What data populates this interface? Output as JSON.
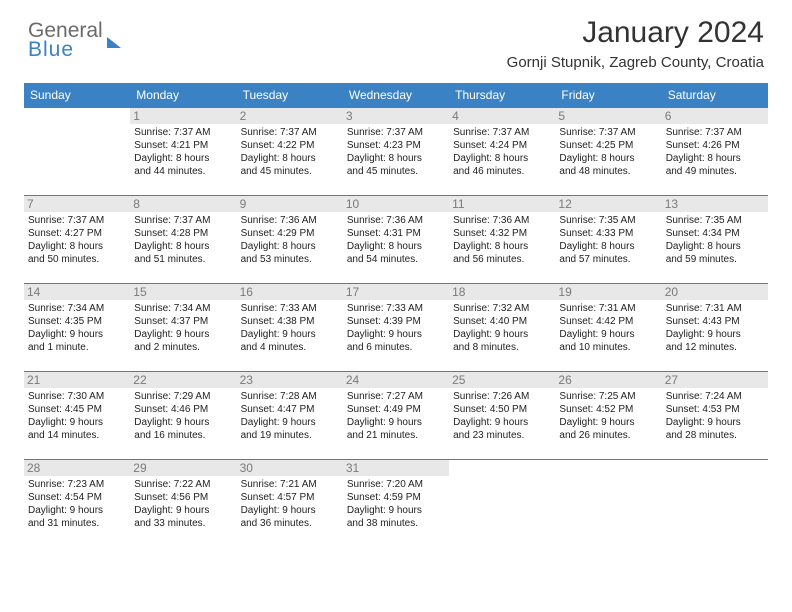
{
  "logo": {
    "line1": "General",
    "line2": "Blue"
  },
  "title": "January 2024",
  "location": "Gornji Stupnik, Zagreb County, Croatia",
  "colors": {
    "header_bg": "#3b82c4",
    "header_text": "#ffffff",
    "daynum_bg": "#e8e8e8",
    "daynum_text": "#7a7a7a",
    "cell_border": "#3b82c4",
    "body_text": "#222222",
    "logo_gray": "#6b6b6b",
    "logo_blue": "#3b82c4"
  },
  "weekdays": [
    "Sunday",
    "Monday",
    "Tuesday",
    "Wednesday",
    "Thursday",
    "Friday",
    "Saturday"
  ],
  "weeks": [
    [
      null,
      {
        "n": "1",
        "sr": "Sunrise: 7:37 AM",
        "ss": "Sunset: 4:21 PM",
        "d1": "Daylight: 8 hours",
        "d2": "and 44 minutes."
      },
      {
        "n": "2",
        "sr": "Sunrise: 7:37 AM",
        "ss": "Sunset: 4:22 PM",
        "d1": "Daylight: 8 hours",
        "d2": "and 45 minutes."
      },
      {
        "n": "3",
        "sr": "Sunrise: 7:37 AM",
        "ss": "Sunset: 4:23 PM",
        "d1": "Daylight: 8 hours",
        "d2": "and 45 minutes."
      },
      {
        "n": "4",
        "sr": "Sunrise: 7:37 AM",
        "ss": "Sunset: 4:24 PM",
        "d1": "Daylight: 8 hours",
        "d2": "and 46 minutes."
      },
      {
        "n": "5",
        "sr": "Sunrise: 7:37 AM",
        "ss": "Sunset: 4:25 PM",
        "d1": "Daylight: 8 hours",
        "d2": "and 48 minutes."
      },
      {
        "n": "6",
        "sr": "Sunrise: 7:37 AM",
        "ss": "Sunset: 4:26 PM",
        "d1": "Daylight: 8 hours",
        "d2": "and 49 minutes."
      }
    ],
    [
      {
        "n": "7",
        "sr": "Sunrise: 7:37 AM",
        "ss": "Sunset: 4:27 PM",
        "d1": "Daylight: 8 hours",
        "d2": "and 50 minutes."
      },
      {
        "n": "8",
        "sr": "Sunrise: 7:37 AM",
        "ss": "Sunset: 4:28 PM",
        "d1": "Daylight: 8 hours",
        "d2": "and 51 minutes."
      },
      {
        "n": "9",
        "sr": "Sunrise: 7:36 AM",
        "ss": "Sunset: 4:29 PM",
        "d1": "Daylight: 8 hours",
        "d2": "and 53 minutes."
      },
      {
        "n": "10",
        "sr": "Sunrise: 7:36 AM",
        "ss": "Sunset: 4:31 PM",
        "d1": "Daylight: 8 hours",
        "d2": "and 54 minutes."
      },
      {
        "n": "11",
        "sr": "Sunrise: 7:36 AM",
        "ss": "Sunset: 4:32 PM",
        "d1": "Daylight: 8 hours",
        "d2": "and 56 minutes."
      },
      {
        "n": "12",
        "sr": "Sunrise: 7:35 AM",
        "ss": "Sunset: 4:33 PM",
        "d1": "Daylight: 8 hours",
        "d2": "and 57 minutes."
      },
      {
        "n": "13",
        "sr": "Sunrise: 7:35 AM",
        "ss": "Sunset: 4:34 PM",
        "d1": "Daylight: 8 hours",
        "d2": "and 59 minutes."
      }
    ],
    [
      {
        "n": "14",
        "sr": "Sunrise: 7:34 AM",
        "ss": "Sunset: 4:35 PM",
        "d1": "Daylight: 9 hours",
        "d2": "and 1 minute."
      },
      {
        "n": "15",
        "sr": "Sunrise: 7:34 AM",
        "ss": "Sunset: 4:37 PM",
        "d1": "Daylight: 9 hours",
        "d2": "and 2 minutes."
      },
      {
        "n": "16",
        "sr": "Sunrise: 7:33 AM",
        "ss": "Sunset: 4:38 PM",
        "d1": "Daylight: 9 hours",
        "d2": "and 4 minutes."
      },
      {
        "n": "17",
        "sr": "Sunrise: 7:33 AM",
        "ss": "Sunset: 4:39 PM",
        "d1": "Daylight: 9 hours",
        "d2": "and 6 minutes."
      },
      {
        "n": "18",
        "sr": "Sunrise: 7:32 AM",
        "ss": "Sunset: 4:40 PM",
        "d1": "Daylight: 9 hours",
        "d2": "and 8 minutes."
      },
      {
        "n": "19",
        "sr": "Sunrise: 7:31 AM",
        "ss": "Sunset: 4:42 PM",
        "d1": "Daylight: 9 hours",
        "d2": "and 10 minutes."
      },
      {
        "n": "20",
        "sr": "Sunrise: 7:31 AM",
        "ss": "Sunset: 4:43 PM",
        "d1": "Daylight: 9 hours",
        "d2": "and 12 minutes."
      }
    ],
    [
      {
        "n": "21",
        "sr": "Sunrise: 7:30 AM",
        "ss": "Sunset: 4:45 PM",
        "d1": "Daylight: 9 hours",
        "d2": "and 14 minutes."
      },
      {
        "n": "22",
        "sr": "Sunrise: 7:29 AM",
        "ss": "Sunset: 4:46 PM",
        "d1": "Daylight: 9 hours",
        "d2": "and 16 minutes."
      },
      {
        "n": "23",
        "sr": "Sunrise: 7:28 AM",
        "ss": "Sunset: 4:47 PM",
        "d1": "Daylight: 9 hours",
        "d2": "and 19 minutes."
      },
      {
        "n": "24",
        "sr": "Sunrise: 7:27 AM",
        "ss": "Sunset: 4:49 PM",
        "d1": "Daylight: 9 hours",
        "d2": "and 21 minutes."
      },
      {
        "n": "25",
        "sr": "Sunrise: 7:26 AM",
        "ss": "Sunset: 4:50 PM",
        "d1": "Daylight: 9 hours",
        "d2": "and 23 minutes."
      },
      {
        "n": "26",
        "sr": "Sunrise: 7:25 AM",
        "ss": "Sunset: 4:52 PM",
        "d1": "Daylight: 9 hours",
        "d2": "and 26 minutes."
      },
      {
        "n": "27",
        "sr": "Sunrise: 7:24 AM",
        "ss": "Sunset: 4:53 PM",
        "d1": "Daylight: 9 hours",
        "d2": "and 28 minutes."
      }
    ],
    [
      {
        "n": "28",
        "sr": "Sunrise: 7:23 AM",
        "ss": "Sunset: 4:54 PM",
        "d1": "Daylight: 9 hours",
        "d2": "and 31 minutes."
      },
      {
        "n": "29",
        "sr": "Sunrise: 7:22 AM",
        "ss": "Sunset: 4:56 PM",
        "d1": "Daylight: 9 hours",
        "d2": "and 33 minutes."
      },
      {
        "n": "30",
        "sr": "Sunrise: 7:21 AM",
        "ss": "Sunset: 4:57 PM",
        "d1": "Daylight: 9 hours",
        "d2": "and 36 minutes."
      },
      {
        "n": "31",
        "sr": "Sunrise: 7:20 AM",
        "ss": "Sunset: 4:59 PM",
        "d1": "Daylight: 9 hours",
        "d2": "and 38 minutes."
      },
      null,
      null,
      null
    ]
  ]
}
